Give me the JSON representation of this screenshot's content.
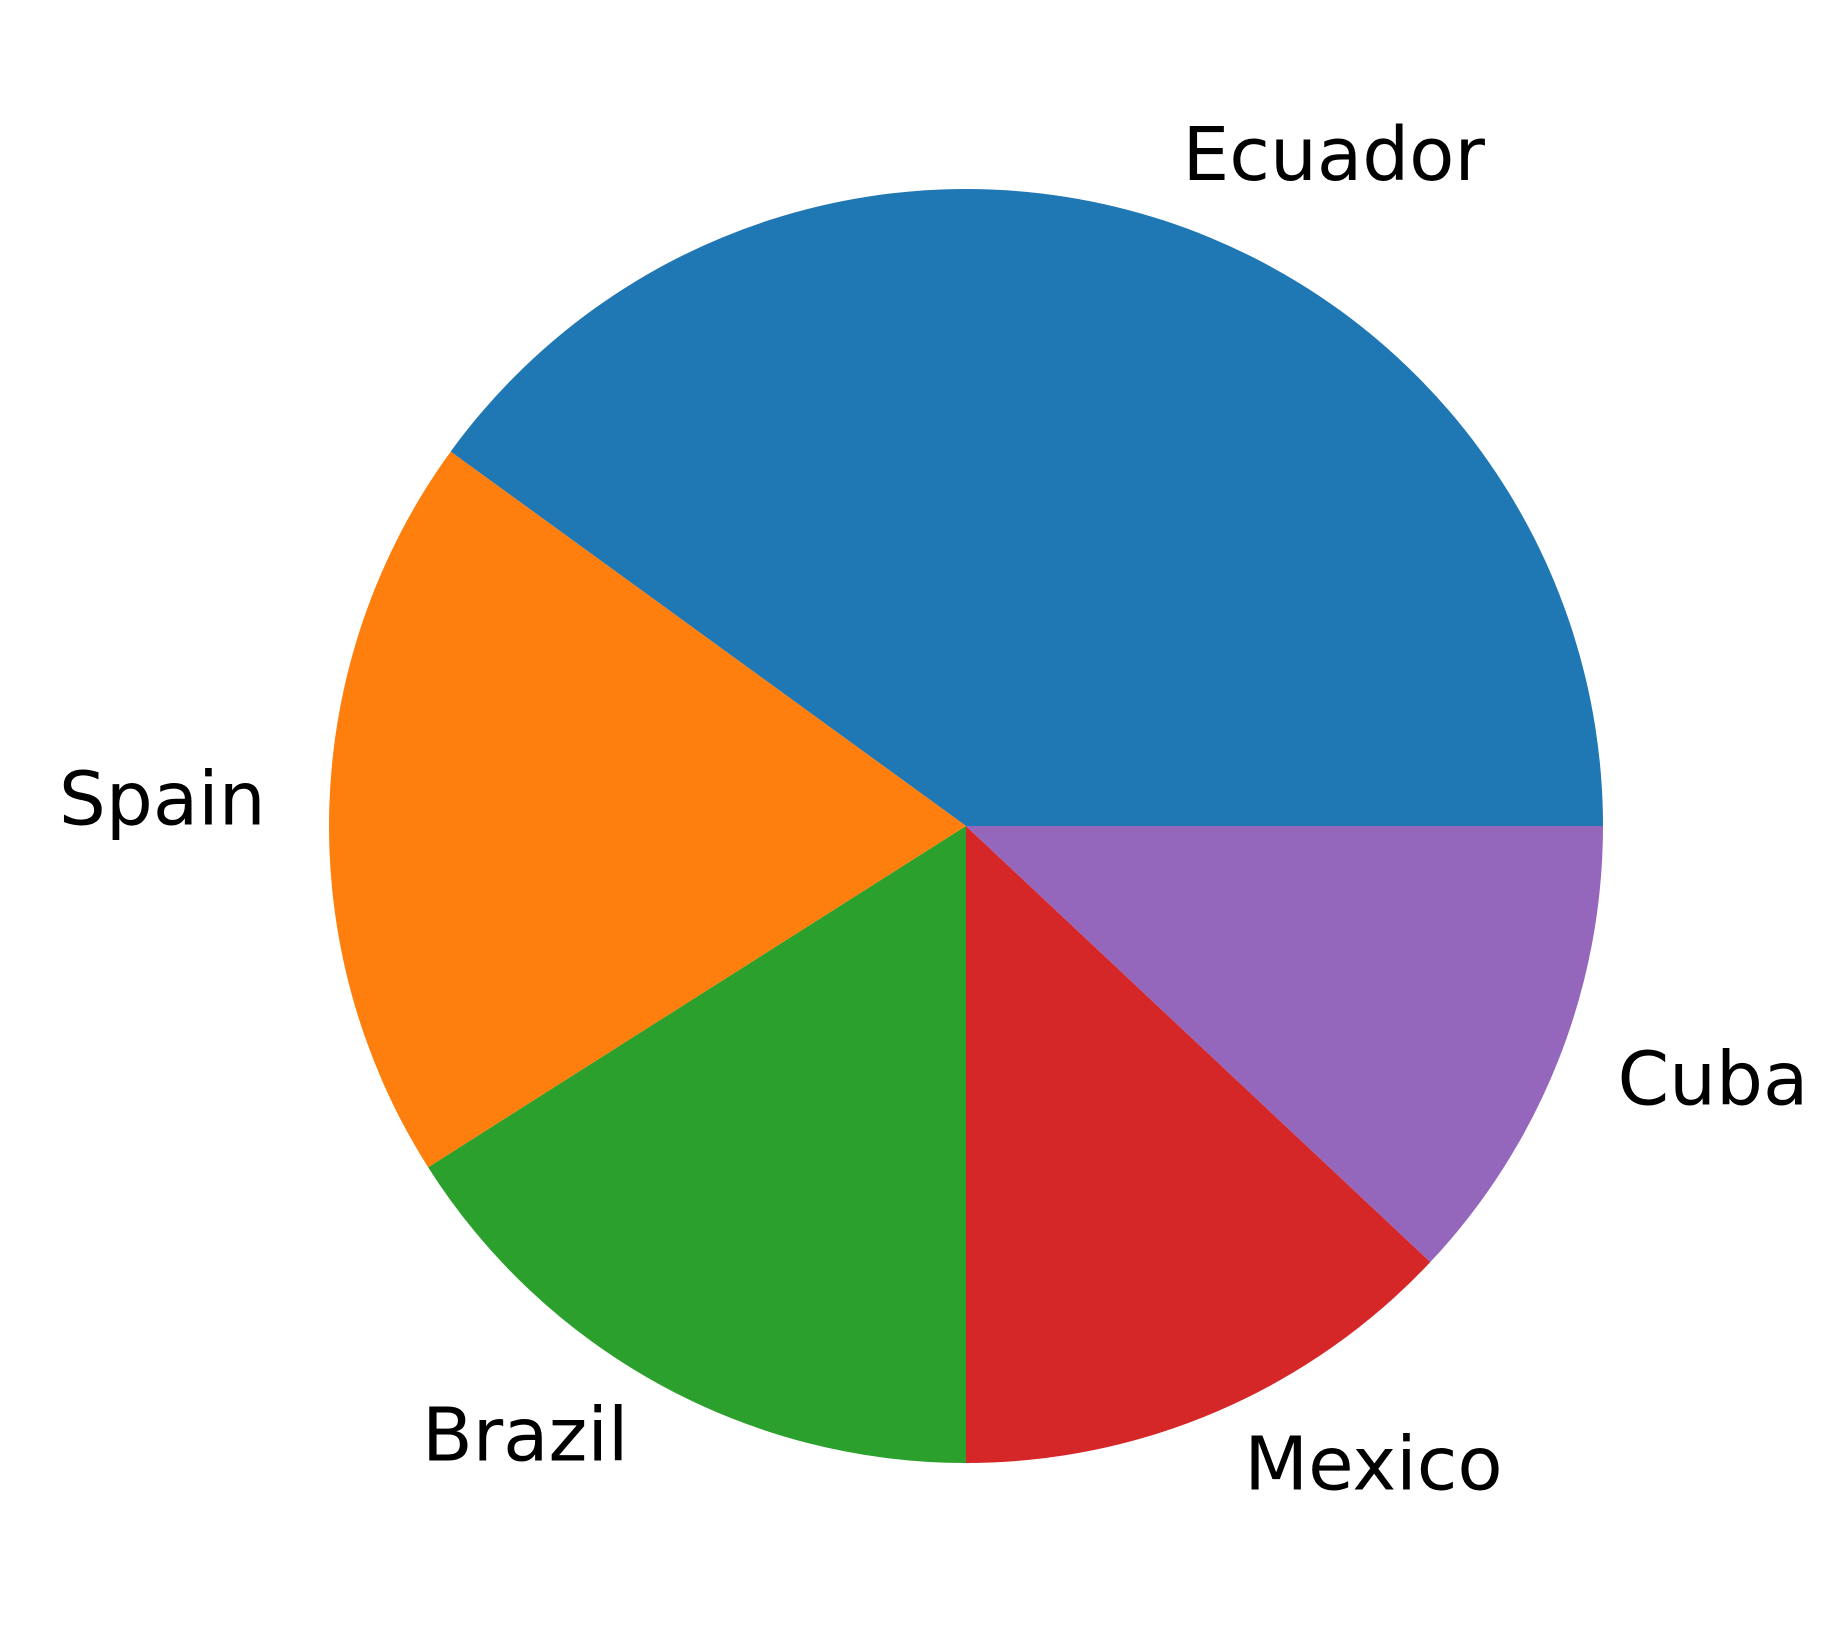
{
  "chart_data": {
    "type": "pie",
    "title": "",
    "start_angle_deg": 0,
    "direction": "counterclockwise",
    "slices": [
      {
        "label": "Ecuador",
        "value": 40,
        "color": "#1f77b4"
      },
      {
        "label": "Spain",
        "value": 19,
        "color": "#ff7f0e"
      },
      {
        "label": "Brazil",
        "value": 16,
        "color": "#2ca02c"
      },
      {
        "label": "Mexico",
        "value": 13,
        "color": "#d62728"
      },
      {
        "label": "Cuba",
        "value": 12,
        "color": "#9467bd"
      }
    ]
  }
}
